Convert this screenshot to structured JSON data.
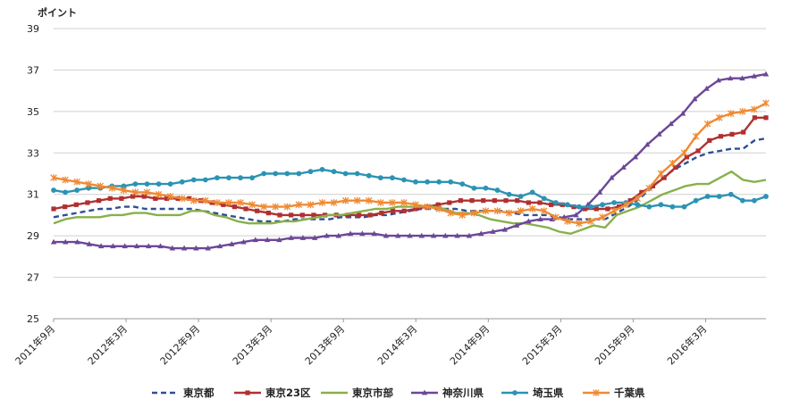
{
  "chart_data": {
    "type": "line",
    "title": "",
    "ylabel": "ポイント",
    "xlabel": "",
    "ylim": [
      25,
      39
    ],
    "yticks": [
      25,
      27,
      29,
      31,
      33,
      35,
      37,
      39
    ],
    "grid": "horizontal",
    "legend_position": "bottom",
    "x_tick_labels": [
      "2011年9月",
      "2012年3月",
      "2012年9月",
      "2013年3月",
      "2013年9月",
      "2014年3月",
      "2014年9月",
      "2015年3月",
      "2015年9月",
      "2016年3月"
    ],
    "x_tick_months": [
      0,
      6,
      12,
      18,
      24,
      30,
      36,
      42,
      48,
      54
    ],
    "x_range_months": [
      0,
      59
    ],
    "series": [
      {
        "name": "東京都",
        "color": "#2e4f96",
        "marker": "none",
        "dash": "6,4",
        "values": [
          29.9,
          30.0,
          30.1,
          30.2,
          30.3,
          30.3,
          30.4,
          30.4,
          30.3,
          30.3,
          30.3,
          30.3,
          30.3,
          30.2,
          30.1,
          30.0,
          29.9,
          29.8,
          29.7,
          29.7,
          29.7,
          29.8,
          29.8,
          29.8,
          29.8,
          29.9,
          29.9,
          29.9,
          30.0,
          30.0,
          30.1,
          30.2,
          30.3,
          30.3,
          30.3,
          30.3,
          30.2,
          30.2,
          30.2,
          30.2,
          30.1,
          30.0,
          30.0,
          30.0,
          29.9,
          29.8,
          29.8,
          29.8,
          29.8,
          30.1,
          30.4,
          30.8,
          31.3,
          31.8,
          32.2,
          32.5,
          32.8,
          33.0,
          33.1,
          33.2,
          33.2,
          33.6,
          33.7
        ]
      },
      {
        "name": "東京23区",
        "color": "#b03030",
        "marker": "square",
        "dash": "",
        "values": [
          30.3,
          30.4,
          30.5,
          30.6,
          30.7,
          30.8,
          30.8,
          30.9,
          30.9,
          30.8,
          30.8,
          30.8,
          30.8,
          30.7,
          30.6,
          30.5,
          30.4,
          30.3,
          30.2,
          30.1,
          30.0,
          30.0,
          30.0,
          30.0,
          30.0,
          30.0,
          30.0,
          30.0,
          30.0,
          30.1,
          30.2,
          30.2,
          30.3,
          30.4,
          30.5,
          30.6,
          30.7,
          30.7,
          30.7,
          30.7,
          30.7,
          30.7,
          30.6,
          30.6,
          30.5,
          30.5,
          30.4,
          30.3,
          30.3,
          30.3,
          30.4,
          30.7,
          31.1,
          31.4,
          31.8,
          32.3,
          32.8,
          33.1,
          33.6,
          33.8,
          33.9,
          34.0,
          34.7,
          34.7
        ]
      },
      {
        "name": "東京市部",
        "color": "#88b04b",
        "marker": "none",
        "dash": "",
        "values": [
          29.6,
          29.8,
          29.9,
          29.9,
          29.9,
          30.0,
          30.0,
          30.1,
          30.1,
          30.0,
          30.0,
          30.0,
          30.2,
          30.2,
          30.0,
          29.9,
          29.7,
          29.6,
          29.6,
          29.6,
          29.7,
          29.7,
          29.8,
          29.9,
          30.0,
          30.0,
          30.1,
          30.2,
          30.3,
          30.3,
          30.4,
          30.4,
          30.4,
          30.4,
          30.3,
          30.1,
          30.1,
          30.0,
          29.8,
          29.7,
          29.6,
          29.6,
          29.5,
          29.4,
          29.2,
          29.1,
          29.3,
          29.5,
          29.4,
          30.0,
          30.2,
          30.4,
          30.7,
          31.0,
          31.2,
          31.4,
          31.5,
          31.5,
          31.8,
          32.1,
          31.7,
          31.6,
          31.7
        ]
      },
      {
        "name": "神奈川県",
        "color": "#6c4796",
        "marker": "triangle",
        "dash": "",
        "values": [
          28.7,
          28.7,
          28.7,
          28.6,
          28.5,
          28.5,
          28.5,
          28.5,
          28.5,
          28.5,
          28.4,
          28.4,
          28.4,
          28.4,
          28.5,
          28.6,
          28.7,
          28.8,
          28.8,
          28.8,
          28.9,
          28.9,
          28.9,
          29.0,
          29.0,
          29.1,
          29.1,
          29.1,
          29.0,
          29.0,
          29.0,
          29.0,
          29.0,
          29.0,
          29.0,
          29.0,
          29.1,
          29.2,
          29.3,
          29.5,
          29.7,
          29.8,
          29.8,
          29.9,
          30.0,
          30.5,
          31.1,
          31.8,
          32.3,
          32.8,
          33.4,
          33.9,
          34.4,
          34.9,
          35.6,
          36.1,
          36.5,
          36.6,
          36.6,
          36.7,
          36.8
        ]
      },
      {
        "name": "埼玉県",
        "color": "#2b93b3",
        "marker": "circle",
        "dash": "",
        "values": [
          31.2,
          31.1,
          31.2,
          31.3,
          31.3,
          31.4,
          31.4,
          31.5,
          31.5,
          31.5,
          31.5,
          31.6,
          31.7,
          31.7,
          31.8,
          31.8,
          31.8,
          31.8,
          32.0,
          32.0,
          32.0,
          32.0,
          32.1,
          32.2,
          32.1,
          32.0,
          32.0,
          31.9,
          31.8,
          31.8,
          31.7,
          31.6,
          31.6,
          31.6,
          31.6,
          31.5,
          31.3,
          31.3,
          31.2,
          31.0,
          30.9,
          31.1,
          30.8,
          30.6,
          30.5,
          30.4,
          30.4,
          30.5,
          30.6,
          30.6,
          30.5,
          30.4,
          30.5,
          30.4,
          30.4,
          30.7,
          30.9,
          30.9,
          31.0,
          30.7,
          30.7,
          30.9
        ]
      },
      {
        "name": "千葉県",
        "color": "#ef8a33",
        "marker": "star",
        "dash": "",
        "values": [
          31.8,
          31.7,
          31.6,
          31.5,
          31.4,
          31.3,
          31.2,
          31.1,
          31.1,
          31.0,
          30.9,
          30.8,
          30.7,
          30.7,
          30.6,
          30.6,
          30.6,
          30.5,
          30.4,
          30.4,
          30.4,
          30.5,
          30.5,
          30.6,
          30.6,
          30.7,
          30.7,
          30.7,
          30.6,
          30.6,
          30.6,
          30.5,
          30.4,
          30.3,
          30.1,
          30.0,
          30.1,
          30.2,
          30.2,
          30.1,
          30.2,
          30.3,
          30.2,
          29.9,
          29.7,
          29.6,
          29.7,
          29.9,
          30.2,
          30.5,
          30.8,
          31.3,
          32.0,
          32.5,
          33.0,
          33.8,
          34.4,
          34.7,
          34.9,
          35.0,
          35.1,
          35.4
        ]
      }
    ]
  }
}
